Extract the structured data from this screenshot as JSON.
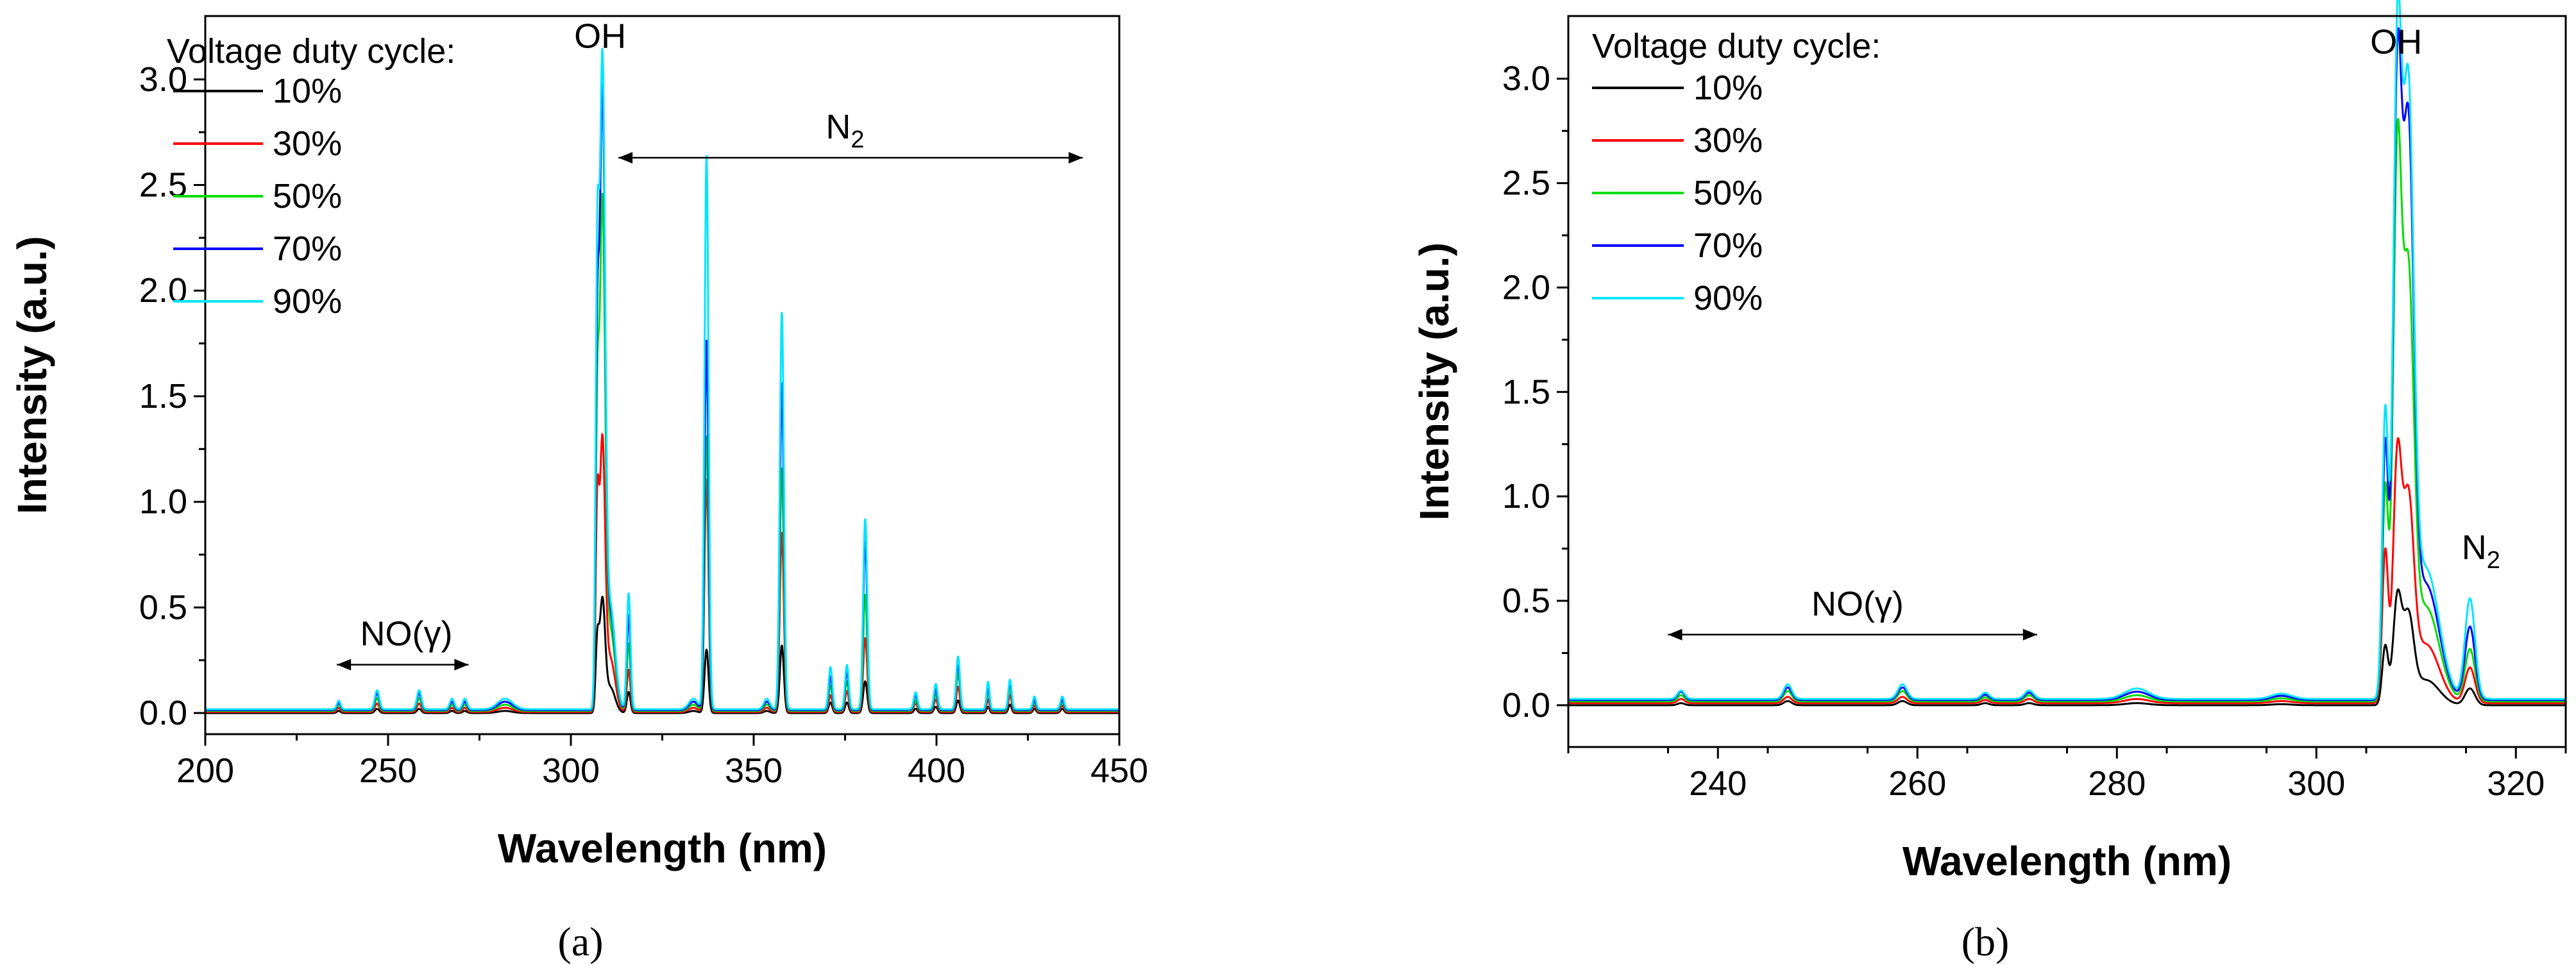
{
  "chart_data": [
    {
      "type": "line",
      "panel_label": "(a)",
      "xlabel": "Wavelength (nm)",
      "ylabel": "Intensity (a.u.)",
      "xlim": [
        200,
        450
      ],
      "ylim": [
        -0.1,
        3.3
      ],
      "xticks": [
        200,
        250,
        300,
        350,
        400,
        450
      ],
      "yticks": [
        0.0,
        0.5,
        1.0,
        1.5,
        2.0,
        2.5,
        3.0
      ],
      "grid": false,
      "legend": {
        "title": "Voltage duty cycle:",
        "placement": "top-left",
        "entries": [
          "10%",
          "30%",
          "50%",
          "70%",
          "90%"
        ]
      },
      "annotations": [
        {
          "text": "OH",
          "x": 308,
          "y": 3.15
        },
        {
          "text": "N",
          "subscript": "2",
          "x": 375,
          "y": 2.72,
          "arrow_from": 313,
          "arrow_to": 440
        },
        {
          "text": "NO(γ)",
          "x": 255,
          "y": 0.32,
          "arrow_from": 236,
          "arrow_to": 272
        }
      ],
      "baseline": [
        0.0,
        0.005,
        0.01,
        0.014,
        0.018
      ],
      "peaks": [
        {
          "x": 236.5,
          "w": 0.5,
          "h": [
            0.01,
            0.02,
            0.03,
            0.035,
            0.04
          ]
        },
        {
          "x": 247,
          "w": 0.6,
          "h": [
            0.02,
            0.04,
            0.06,
            0.08,
            0.09
          ]
        },
        {
          "x": 258.5,
          "w": 0.6,
          "h": [
            0.02,
            0.04,
            0.06,
            0.08,
            0.09
          ]
        },
        {
          "x": 267.5,
          "w": 0.6,
          "h": [
            0.01,
            0.02,
            0.03,
            0.04,
            0.05
          ]
        },
        {
          "x": 271,
          "w": 0.6,
          "h": [
            0.01,
            0.02,
            0.03,
            0.04,
            0.05
          ]
        },
        {
          "x": 282,
          "w": 2.0,
          "h": [
            0.01,
            0.02,
            0.03,
            0.04,
            0.05
          ]
        },
        {
          "x": 307.2,
          "w": 0.45,
          "h": [
            0.3,
            0.85,
            1.2,
            1.45,
            1.8
          ]
        },
        {
          "x": 308.6,
          "w": 0.75,
          "h": [
            0.52,
            1.25,
            2.35,
            2.85,
            3.0
          ]
        },
        {
          "x": 310.8,
          "w": 1.3,
          "h": [
            0.12,
            0.25,
            0.38,
            0.45,
            0.48
          ]
        },
        {
          "x": 315.8,
          "w": 0.5,
          "h": [
            0.1,
            0.2,
            0.32,
            0.45,
            0.55
          ]
        },
        {
          "x": 333.5,
          "w": 1.2,
          "h": [
            0.01,
            0.02,
            0.03,
            0.04,
            0.05
          ]
        },
        {
          "x": 337.1,
          "w": 0.55,
          "h": [
            0.3,
            1.1,
            1.3,
            1.75,
            2.62
          ]
        },
        {
          "x": 353.6,
          "w": 0.8,
          "h": [
            0.01,
            0.02,
            0.03,
            0.04,
            0.05
          ]
        },
        {
          "x": 357.7,
          "w": 0.55,
          "h": [
            0.32,
            0.85,
            1.15,
            1.55,
            1.88
          ]
        },
        {
          "x": 371,
          "w": 0.5,
          "h": [
            0.05,
            0.08,
            0.12,
            0.16,
            0.2
          ]
        },
        {
          "x": 375.5,
          "w": 0.5,
          "h": [
            0.05,
            0.1,
            0.14,
            0.18,
            0.21
          ]
        },
        {
          "x": 380.5,
          "w": 0.55,
          "h": [
            0.15,
            0.35,
            0.55,
            0.8,
            0.9
          ]
        },
        {
          "x": 394.3,
          "w": 0.5,
          "h": [
            0.02,
            0.04,
            0.05,
            0.07,
            0.08
          ]
        },
        {
          "x": 399.8,
          "w": 0.5,
          "h": [
            0.03,
            0.06,
            0.08,
            0.1,
            0.12
          ]
        },
        {
          "x": 405.9,
          "w": 0.5,
          "h": [
            0.06,
            0.12,
            0.18,
            0.22,
            0.25
          ]
        },
        {
          "x": 414.1,
          "w": 0.4,
          "h": [
            0.03,
            0.06,
            0.09,
            0.11,
            0.13
          ]
        },
        {
          "x": 420.1,
          "w": 0.45,
          "h": [
            0.04,
            0.08,
            0.11,
            0.13,
            0.14
          ]
        },
        {
          "x": 426.8,
          "w": 0.45,
          "h": [
            0.02,
            0.03,
            0.04,
            0.05,
            0.06
          ]
        },
        {
          "x": 434.4,
          "w": 0.5,
          "h": [
            0.02,
            0.03,
            0.04,
            0.05,
            0.06
          ]
        }
      ]
    },
    {
      "type": "line",
      "panel_label": "(b)",
      "xlabel": "Wavelength (nm)",
      "ylabel": "Intensity (a.u.)",
      "xlim": [
        225,
        325
      ],
      "ylim": [
        -0.2,
        3.3
      ],
      "xticks": [
        240,
        260,
        280,
        300,
        320
      ],
      "yticks": [
        0.0,
        0.5,
        1.0,
        1.5,
        2.0,
        2.5,
        3.0
      ],
      "grid": false,
      "legend": {
        "title": "Voltage duty cycle:",
        "placement": "top-left",
        "entries": [
          "10%",
          "30%",
          "50%",
          "70%",
          "90%"
        ]
      },
      "annotations": [
        {
          "text": "OH",
          "x": 308,
          "y": 3.12
        },
        {
          "text": "N",
          "subscript": "2",
          "x": 316.5,
          "y": 0.7
        },
        {
          "text": "NO(γ)",
          "x": 254,
          "y": 0.43,
          "arrow_from": 235,
          "arrow_to": 272
        }
      ],
      "baseline": [
        0.0,
        0.01,
        0.018,
        0.025,
        0.03
      ],
      "peaks": [
        {
          "x": 236.3,
          "w": 0.35,
          "h": [
            0.01,
            0.02,
            0.03,
            0.04,
            0.04
          ]
        },
        {
          "x": 247.0,
          "w": 0.4,
          "h": [
            0.02,
            0.03,
            0.05,
            0.06,
            0.07
          ]
        },
        {
          "x": 258.5,
          "w": 0.45,
          "h": [
            0.02,
            0.03,
            0.05,
            0.06,
            0.07
          ]
        },
        {
          "x": 266.8,
          "w": 0.4,
          "h": [
            0.01,
            0.015,
            0.02,
            0.025,
            0.03
          ]
        },
        {
          "x": 271.2,
          "w": 0.45,
          "h": [
            0.01,
            0.02,
            0.03,
            0.035,
            0.04
          ]
        },
        {
          "x": 282.0,
          "w": 1.2,
          "h": [
            0.01,
            0.02,
            0.03,
            0.04,
            0.05
          ]
        },
        {
          "x": 296.5,
          "w": 1.0,
          "h": [
            0.005,
            0.01,
            0.015,
            0.02,
            0.025
          ]
        },
        {
          "x": 306.9,
          "w": 0.3,
          "h": [
            0.28,
            0.72,
            1.0,
            1.2,
            1.35
          ]
        },
        {
          "x": 308.1,
          "w": 0.42,
          "h": [
            0.48,
            1.1,
            2.45,
            2.75,
            2.9
          ]
        },
        {
          "x": 309.2,
          "w": 0.55,
          "h": [
            0.4,
            0.9,
            1.9,
            2.55,
            2.7
          ]
        },
        {
          "x": 311.0,
          "w": 1.3,
          "h": [
            0.12,
            0.28,
            0.45,
            0.55,
            0.62
          ]
        },
        {
          "x": 315.4,
          "w": 0.5,
          "h": [
            0.08,
            0.17,
            0.25,
            0.35,
            0.48
          ]
        }
      ]
    }
  ],
  "colors": {
    "series": [
      "#000000",
      "#ff0000",
      "#00dd00",
      "#0000ff",
      "#00e5ff"
    ],
    "axes": "#000000"
  }
}
